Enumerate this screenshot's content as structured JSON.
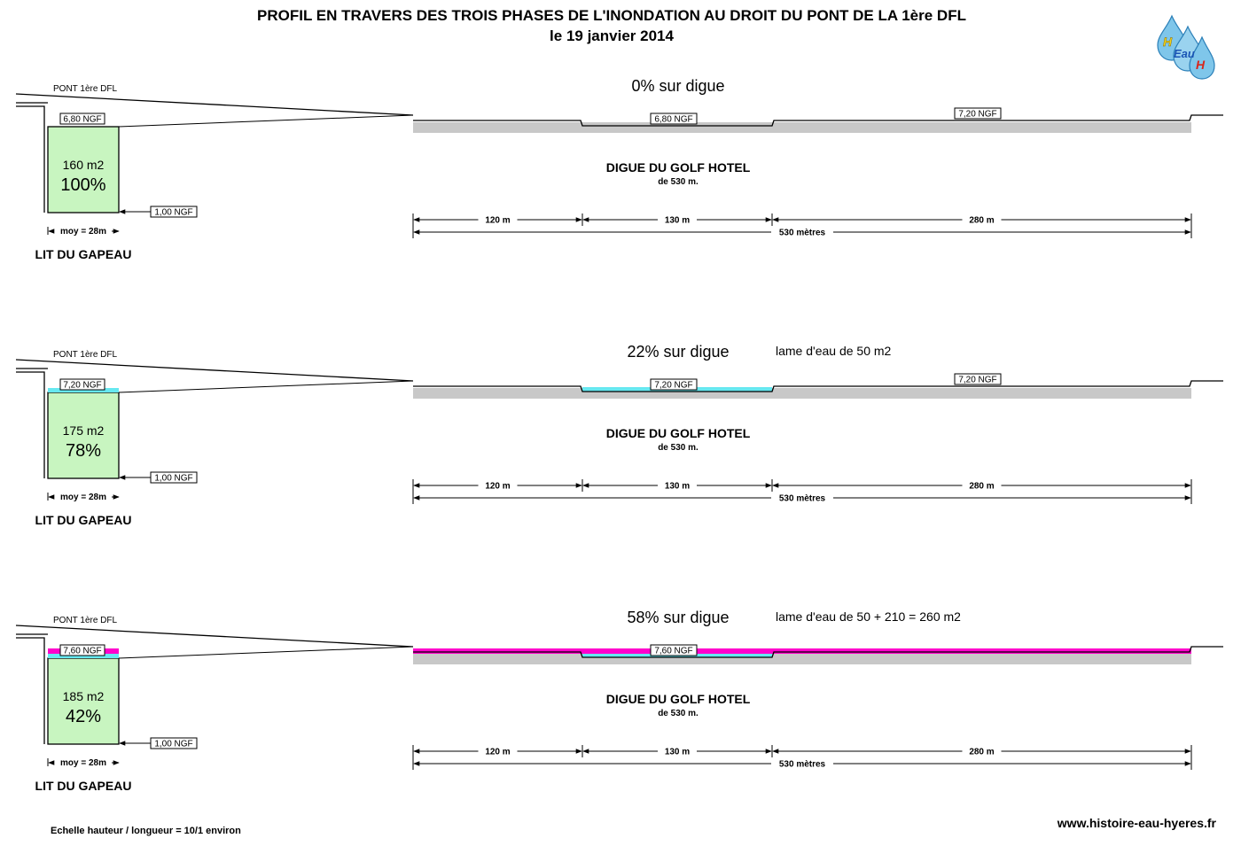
{
  "header": {
    "title_line1": "PROFIL EN TRAVERS DES TROIS PHASES DE L'INONDATION AU DROIT DU PONT DE LA 1ère DFL",
    "title_line2": "le 19 janvier 2014"
  },
  "logo": {
    "letters": [
      "H",
      "Eau",
      "H"
    ],
    "colors": {
      "drop": "#7fc6ea",
      "drop_edge": "#2a7fb8",
      "letter_yellow": "#f2d21a",
      "letter_red": "#d8261c",
      "letter_blue": "#1a55b5"
    }
  },
  "colors": {
    "channel_fill": "#c8f5c0",
    "water_phase2": "#66e8f0",
    "water_phase3": "#ff00cc",
    "dike": "#c8c8c8",
    "line": "#000000"
  },
  "phases": [
    {
      "bridge_label": "PONT 1ère DFL",
      "channel_level": "6,80 NGF",
      "channel_area": "160 m2",
      "channel_pct": "100%",
      "bed_level": "1,00 NGF",
      "width": "moy = 28m",
      "bed_name": "LIT DU GAPEAU",
      "overflow": "0% sur digue",
      "sheet_note": "",
      "dike_mid_level": "6,80 NGF",
      "dike_right_level": "7,20 NGF",
      "dike_name": "DIGUE DU GOLF HOTEL",
      "dike_length": "de 530 m.",
      "dim_1": "120 m",
      "dim_2": "130 m",
      "dim_3": "280 m",
      "dim_total": "530 mètres",
      "water_level": 0
    },
    {
      "bridge_label": "PONT 1ère DFL",
      "channel_level": "7,20 NGF",
      "channel_area": "175 m2",
      "channel_pct": "78%",
      "bed_level": "1,00 NGF",
      "width": "moy = 28m",
      "bed_name": "LIT DU GAPEAU",
      "overflow": "22% sur digue",
      "sheet_note": "lame d'eau de 50 m2",
      "dike_mid_level": "7,20 NGF",
      "dike_right_level": "7,20 NGF",
      "dike_name": "DIGUE DU GOLF HOTEL",
      "dike_length": "de 530 m.",
      "dim_1": "120 m",
      "dim_2": "130 m",
      "dim_3": "280 m",
      "dim_total": "530 mètres",
      "water_level": 1
    },
    {
      "bridge_label": "PONT 1ère DFL",
      "channel_level": "7,60 NGF",
      "channel_area": "185 m2",
      "channel_pct": "42%",
      "bed_level": "1,00 NGF",
      "width": "moy = 28m",
      "bed_name": "LIT DU GAPEAU",
      "overflow": "58% sur digue",
      "sheet_note": "lame d'eau de 50 + 210 = 260 m2",
      "dike_mid_level": "7,60 NGF",
      "dike_right_level": "",
      "dike_name": "DIGUE DU GOLF HOTEL",
      "dike_length": "de 530 m.",
      "dim_1": "120 m",
      "dim_2": "130 m",
      "dim_3": "280 m",
      "dim_total": "530 mètres",
      "water_level": 2
    }
  ],
  "footer": {
    "scale_note": "Echelle hauteur / longueur = 10/1 environ",
    "website": "www.histoire-eau-hyeres.fr"
  }
}
